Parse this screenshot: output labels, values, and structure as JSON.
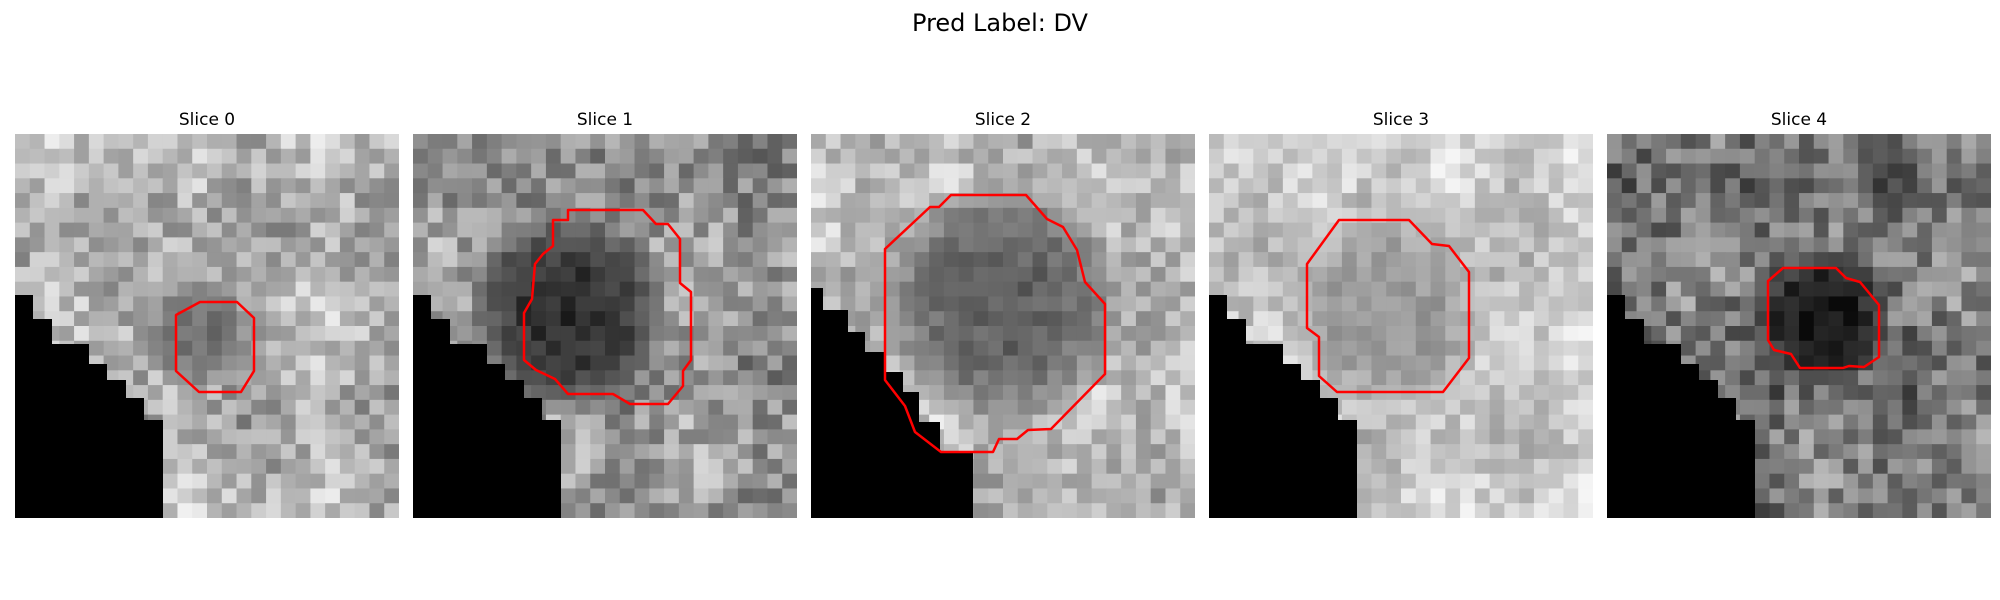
{
  "figure": {
    "title": "Pred Label: DV"
  },
  "panels": [
    {
      "title": "Slice 0",
      "mask_color": "#000000",
      "contour_color": "#ff0000",
      "tone": "mid-gray lesion, small"
    },
    {
      "title": "Slice 1",
      "mask_color": "#000000",
      "contour_color": "#ff0000",
      "tone": "dark lesion"
    },
    {
      "title": "Slice 2",
      "mask_color": "#000000",
      "contour_color": "#ff0000",
      "tone": "large mid-gray lesion"
    },
    {
      "title": "Slice 3",
      "mask_color": "#000000",
      "contour_color": "#ff0000",
      "tone": "light-gray lesion"
    },
    {
      "title": "Slice 4",
      "mask_color": "#000000",
      "contour_color": "#ff0000",
      "tone": "very dark lesion"
    }
  ]
}
